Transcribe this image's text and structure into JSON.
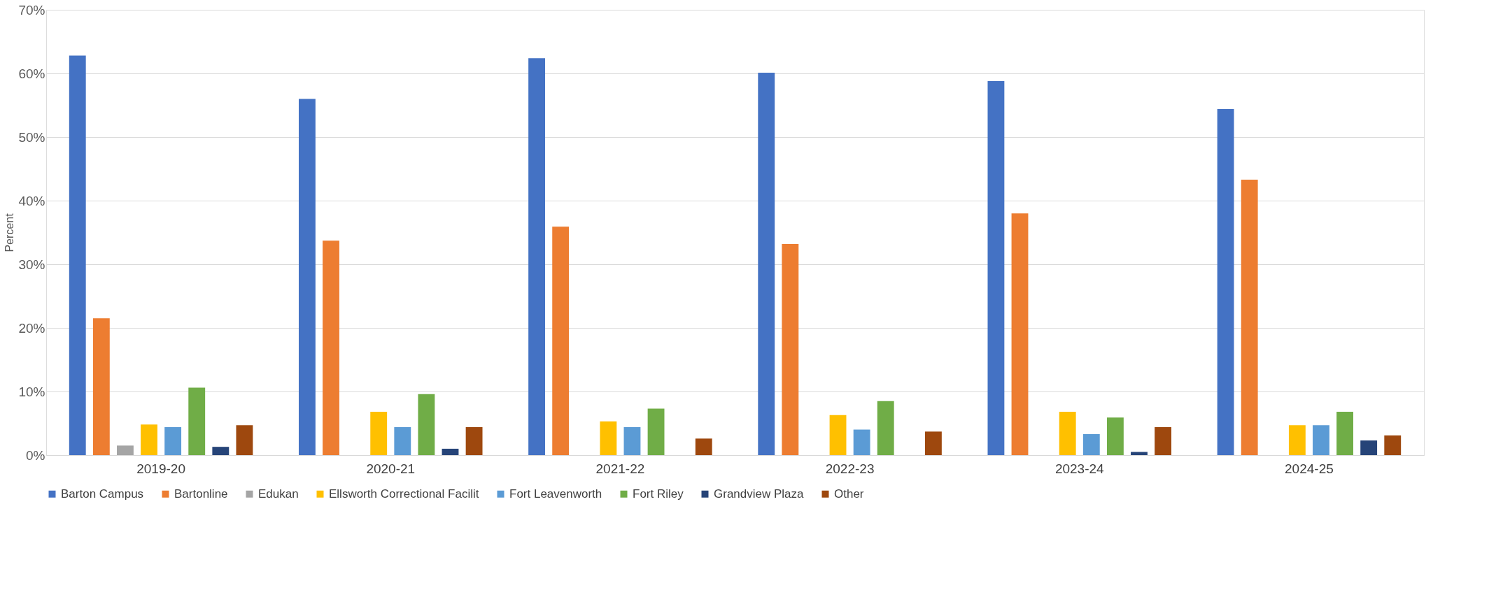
{
  "chart_data": {
    "type": "bar",
    "ylabel": "Percent",
    "categories": [
      "2019-20",
      "2020-21",
      "2021-22",
      "2022-23",
      "2023-24",
      "2024-25"
    ],
    "series": [
      {
        "name": "Barton Campus",
        "color": "#4472c4",
        "values": [
          62.8,
          56.0,
          62.4,
          60.1,
          58.8,
          54.4
        ]
      },
      {
        "name": "Bartonline",
        "color": "#ed7d31",
        "values": [
          21.5,
          33.7,
          35.9,
          33.2,
          38.0,
          43.3
        ]
      },
      {
        "name": "Edukan",
        "color": "#a5a5a5",
        "values": [
          1.5,
          null,
          null,
          null,
          null,
          null
        ]
      },
      {
        "name": "Ellsworth Correctional Facilit",
        "color": "#ffc000",
        "values": [
          4.8,
          6.8,
          5.3,
          6.3,
          6.8,
          4.7
        ]
      },
      {
        "name": "Fort Leavenworth",
        "color": "#5b9bd5",
        "values": [
          4.4,
          4.4,
          4.4,
          4.0,
          3.3,
          4.7
        ]
      },
      {
        "name": "Fort Riley",
        "color": "#70ad47",
        "values": [
          10.6,
          9.6,
          7.3,
          8.5,
          5.9,
          6.8
        ]
      },
      {
        "name": "Grandview Plaza",
        "color": "#264478",
        "values": [
          1.3,
          1.0,
          null,
          null,
          0.5,
          2.3
        ]
      },
      {
        "name": "Other",
        "color": "#9e480e",
        "values": [
          4.7,
          4.4,
          2.6,
          3.7,
          4.4,
          3.1
        ]
      }
    ],
    "ylim": [
      0,
      70
    ],
    "yticks": [
      {
        "value": 0,
        "label": "0%"
      },
      {
        "value": 10,
        "label": "10%"
      },
      {
        "value": 20,
        "label": "20%"
      },
      {
        "value": 30,
        "label": "30%"
      },
      {
        "value": 40,
        "label": "40%"
      },
      {
        "value": 50,
        "label": "50%"
      },
      {
        "value": 60,
        "label": "60%"
      },
      {
        "value": 70,
        "label": "70%"
      }
    ],
    "grid": "y",
    "legend": "bottom"
  }
}
